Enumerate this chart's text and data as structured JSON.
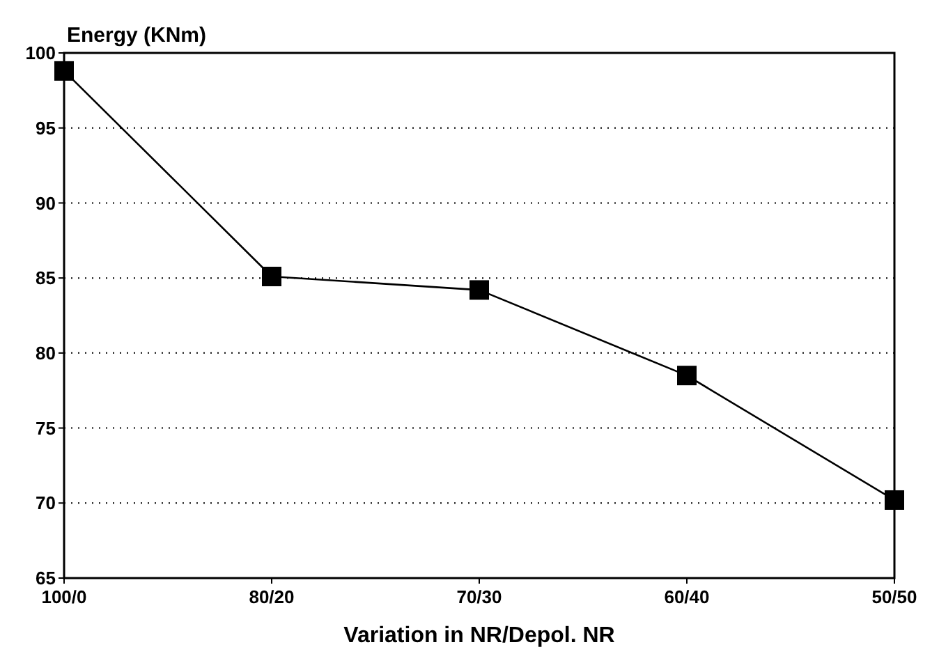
{
  "chart_data": {
    "type": "line",
    "ylabel": "Energy (KNm)",
    "xlabel": "Variation in NR/Depol. NR",
    "categories": [
      "100/0",
      "80/20",
      "70/30",
      "60/40",
      "50/50"
    ],
    "series": [
      {
        "color": "#000000",
        "values": [
          98.8,
          85.1,
          84.2,
          78.5,
          70.2
        ]
      }
    ],
    "ylim": [
      65,
      100
    ],
    "yticks": [
      65,
      70,
      75,
      80,
      85,
      90,
      95,
      100
    ],
    "grid": "y",
    "marker": "square",
    "line_style": "solid"
  }
}
